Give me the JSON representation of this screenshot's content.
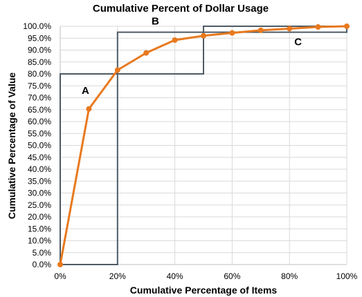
{
  "chart_data": {
    "type": "line",
    "title": "Cumulative Percent of Dollar Usage",
    "xlabel": "Cumulative Percentage of Items",
    "ylabel": "Cumulative Percentage of Value",
    "xlim": [
      0,
      100
    ],
    "ylim": [
      0,
      100
    ],
    "x_ticks": [
      "0%",
      "20%",
      "40%",
      "60%",
      "80%",
      "100%"
    ],
    "x_tick_values": [
      0,
      20,
      40,
      60,
      80,
      100
    ],
    "y_ticks": [
      "0.0%",
      "5.0%",
      "10.0%",
      "15.0%",
      "20.0%",
      "25.0%",
      "30.0%",
      "35.0%",
      "40.0%",
      "45.0%",
      "50.0%",
      "55.0%",
      "60.0%",
      "65.0%",
      "70.0%",
      "75.0%",
      "80.0%",
      "85.0%",
      "90.0%",
      "95.0%",
      "100.0%"
    ],
    "y_tick_values": [
      0,
      5,
      10,
      15,
      20,
      25,
      30,
      35,
      40,
      45,
      50,
      55,
      60,
      65,
      70,
      75,
      80,
      85,
      90,
      95,
      100
    ],
    "grid": true,
    "legend": "none",
    "series": [
      {
        "color": "#E8791E",
        "x": [
          0,
          10,
          20,
          30,
          40,
          50,
          60,
          70,
          80,
          90,
          100
        ],
        "y": [
          0,
          65.3,
          81.6,
          88.8,
          94.2,
          96.0,
          97.2,
          98.3,
          99.0,
          99.7,
          100
        ]
      }
    ],
    "zones": [
      {
        "label": "A",
        "x0": 0,
        "x1": 20,
        "y0": 0,
        "y1": 80
      },
      {
        "label": "B",
        "x0": 20,
        "x1": 50,
        "y0": 80,
        "y1": 97.5
      },
      {
        "label": "C",
        "x0": 50,
        "x1": 100,
        "y0": 97.5,
        "y1": 100
      }
    ],
    "zone_color": "#4D5A64",
    "grid_color": "#D9D9D9"
  }
}
